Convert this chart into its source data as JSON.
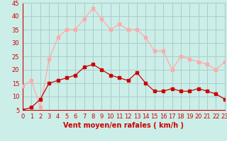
{
  "x": [
    0,
    1,
    2,
    3,
    4,
    5,
    6,
    7,
    8,
    9,
    10,
    11,
    12,
    13,
    14,
    15,
    16,
    17,
    18,
    19,
    20,
    21,
    22,
    23
  ],
  "rafales": [
    14,
    16,
    6,
    24,
    32,
    35,
    35,
    39,
    43,
    39,
    35,
    37,
    35,
    35,
    32,
    27,
    27,
    20,
    25,
    24,
    23,
    22,
    20,
    23
  ],
  "moyen": [
    5,
    6,
    9,
    15,
    16,
    17,
    18,
    21,
    22,
    20,
    18,
    17,
    16,
    19,
    15,
    12,
    12,
    13,
    12,
    12,
    13,
    12,
    11,
    9
  ],
  "rafales_color": "#ffaaaa",
  "moyen_color": "#cc0000",
  "bg_color": "#cceee8",
  "grid_color": "#aacccc",
  "xlabel": "Vent moyen/en rafales ( km/h )",
  "ylim": [
    5,
    45
  ],
  "xlim": [
    0,
    23
  ],
  "yticks": [
    5,
    10,
    15,
    20,
    25,
    30,
    35,
    40,
    45
  ],
  "xticks": [
    0,
    1,
    2,
    3,
    4,
    5,
    6,
    7,
    8,
    9,
    10,
    11,
    12,
    13,
    14,
    15,
    16,
    17,
    18,
    19,
    20,
    21,
    22,
    23
  ],
  "tick_color": "#cc0000",
  "label_fontsize": 6,
  "xlabel_fontsize": 7
}
